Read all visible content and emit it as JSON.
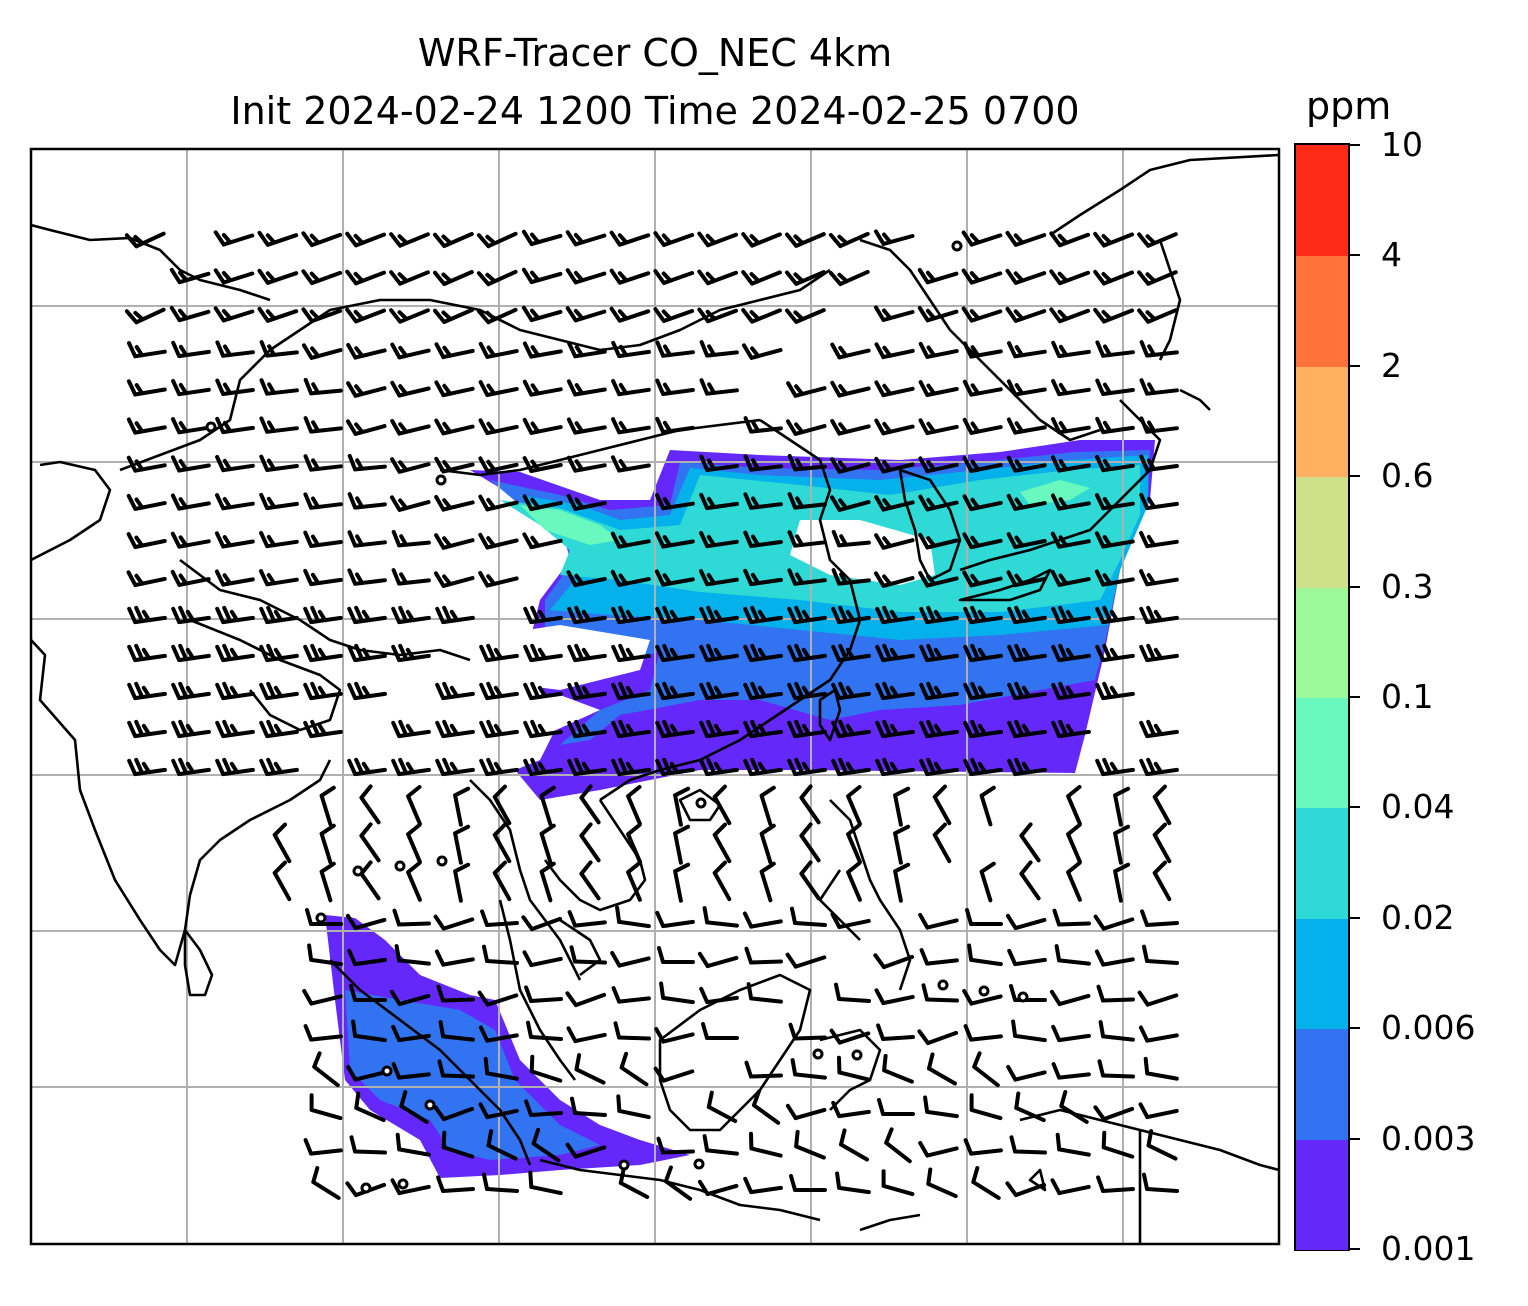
{
  "title": {
    "line1": "WRF-Tracer CO_NEC 4km",
    "line2": "Init 2024-02-24 1200 Time 2024-02-25 0700"
  },
  "colorbar": {
    "unit": "ppm",
    "ticks": [
      "0.001",
      "0.003",
      "0.006",
      "0.02",
      "0.04",
      "0.1",
      "0.3",
      "0.6",
      "2",
      "4",
      "10"
    ],
    "colors": [
      "#6429fa",
      "#3173f0",
      "#04b1ea",
      "#2ed9d6",
      "#69f9be",
      "#9bf99a",
      "#cfe08a",
      "#ffb060",
      "#ff733b",
      "#ff2b17"
    ]
  },
  "map": {
    "layers": [
      "coastlines",
      "country-borders",
      "gridlines",
      "co-tracer-fill",
      "wind-barbs"
    ]
  }
}
